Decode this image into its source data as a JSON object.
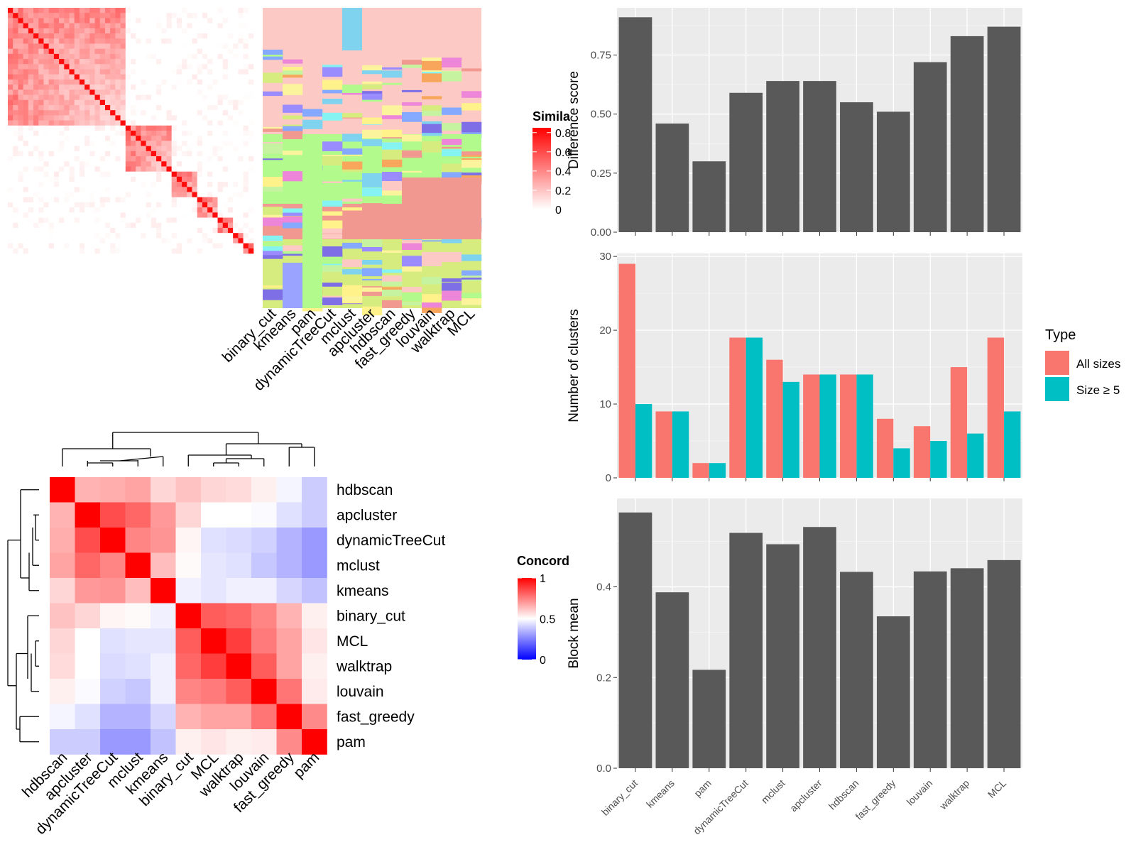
{
  "chart_data": [
    {
      "type": "heatmap",
      "legend_title": "Simila",
      "legend_ticks": [
        "0.8",
        "0.6",
        "0.4",
        "0.2",
        "0"
      ],
      "methods": [
        "binary_cut",
        "kmeans",
        "pam",
        "dynamicTreeCut",
        "mclust",
        "apcluster",
        "hdbscan",
        "fast_greedy",
        "louvain",
        "walktrap",
        "MCL"
      ]
    },
    {
      "type": "heatmap",
      "legend_title": "Concord",
      "legend_ticks": [
        "1",
        "0.5",
        "0"
      ],
      "rows": [
        "hdbscan",
        "apcluster",
        "dynamicTreeCut",
        "mclust",
        "kmeans",
        "binary_cut",
        "MCL",
        "walktrap",
        "louvain",
        "fast_greedy",
        "pam"
      ],
      "values": [
        [
          1.0,
          0.65,
          0.66,
          0.68,
          0.58,
          0.62,
          0.58,
          0.57,
          0.53,
          0.48,
          0.4
        ],
        [
          0.65,
          1.0,
          0.85,
          0.8,
          0.7,
          0.58,
          0.5,
          0.5,
          0.49,
          0.44,
          0.4
        ],
        [
          0.66,
          0.85,
          1.0,
          0.74,
          0.71,
          0.52,
          0.44,
          0.43,
          0.41,
          0.35,
          0.3
        ],
        [
          0.68,
          0.8,
          0.74,
          1.0,
          0.63,
          0.51,
          0.45,
          0.44,
          0.39,
          0.35,
          0.3
        ],
        [
          0.58,
          0.7,
          0.71,
          0.63,
          1.0,
          0.47,
          0.45,
          0.47,
          0.47,
          0.42,
          0.38
        ],
        [
          0.62,
          0.58,
          0.52,
          0.51,
          0.47,
          1.0,
          0.82,
          0.8,
          0.74,
          0.65,
          0.53
        ],
        [
          0.58,
          0.5,
          0.44,
          0.45,
          0.45,
          0.82,
          1.0,
          0.88,
          0.76,
          0.68,
          0.55
        ],
        [
          0.57,
          0.5,
          0.43,
          0.44,
          0.47,
          0.8,
          0.88,
          1.0,
          0.82,
          0.68,
          0.53
        ],
        [
          0.53,
          0.49,
          0.41,
          0.39,
          0.47,
          0.74,
          0.76,
          0.82,
          1.0,
          0.77,
          0.54
        ],
        [
          0.48,
          0.44,
          0.35,
          0.35,
          0.42,
          0.65,
          0.68,
          0.68,
          0.77,
          1.0,
          0.73
        ],
        [
          0.4,
          0.4,
          0.3,
          0.3,
          0.38,
          0.53,
          0.55,
          0.53,
          0.54,
          0.73,
          1.0
        ]
      ]
    },
    {
      "type": "bar",
      "ylabel": "Difference score",
      "categories": [
        "binary_cut",
        "kmeans",
        "pam",
        "dynamicTreeCut",
        "mclust",
        "apcluster",
        "hdbscan",
        "fast_greedy",
        "louvain",
        "walktrap",
        "MCL"
      ],
      "values": [
        0.91,
        0.46,
        0.3,
        0.59,
        0.64,
        0.64,
        0.55,
        0.51,
        0.72,
        0.83,
        0.87
      ],
      "yticks": [
        "0.00",
        "0.25",
        "0.50",
        "0.75"
      ],
      "ylim": [
        0,
        0.95
      ]
    },
    {
      "type": "bar",
      "ylabel": "Number of clusters",
      "categories": [
        "binary_cut",
        "kmeans",
        "pam",
        "dynamicTreeCut",
        "mclust",
        "apcluster",
        "hdbscan",
        "fast_greedy",
        "louvain",
        "walktrap",
        "MCL"
      ],
      "series": [
        {
          "name": "All sizes",
          "color": "#f8766d",
          "values": [
            29,
            9,
            2,
            19,
            16,
            14,
            14,
            8,
            7,
            15,
            19
          ]
        },
        {
          "name": "Size ≥ 5",
          "color": "#00bfc4",
          "values": [
            10,
            9,
            2,
            19,
            13,
            14,
            14,
            4,
            5,
            6,
            9
          ]
        }
      ],
      "yticks": [
        "0",
        "10",
        "20",
        "30"
      ],
      "ylim": [
        0,
        30.4
      ],
      "legend_title": "Type",
      "legend_position": "right"
    },
    {
      "type": "bar",
      "ylabel": "Block mean",
      "categories": [
        "binary_cut",
        "kmeans",
        "pam",
        "dynamicTreeCut",
        "mclust",
        "apcluster",
        "hdbscan",
        "fast_greedy",
        "louvain",
        "walktrap",
        "MCL"
      ],
      "values": [
        0.564,
        0.388,
        0.217,
        0.519,
        0.494,
        0.532,
        0.433,
        0.335,
        0.434,
        0.441,
        0.459
      ],
      "yticks": [
        "0.0",
        "0.2",
        "0.4"
      ],
      "ylim": [
        0,
        0.595
      ]
    }
  ],
  "colors": {
    "panel_bg": "#ebebeb",
    "bar_dark": "#595959",
    "heat_high": "#ff0000",
    "heat_mid": "#ffffff",
    "heat_low": "#0000ff"
  }
}
